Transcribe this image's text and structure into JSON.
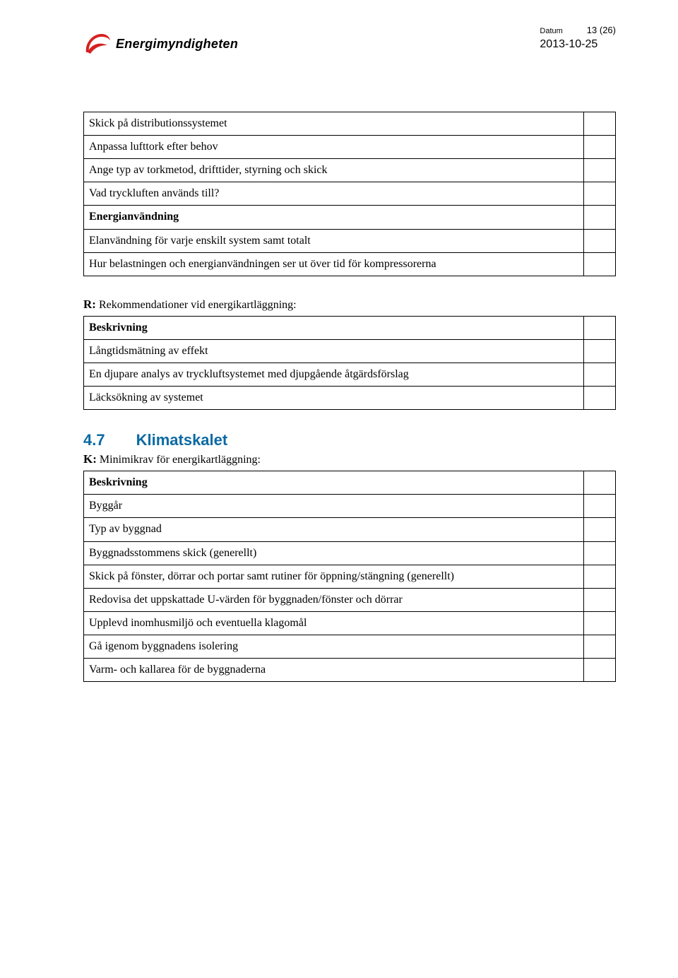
{
  "header": {
    "logo_text": "Energimyndigheten",
    "date_label": "Datum",
    "date": "2013-10-25",
    "page_label": "13 (26)"
  },
  "colors": {
    "section_heading": "#0b6aa3",
    "swoosh_red": "#d62020",
    "text": "#000000",
    "border": "#000000",
    "background": "#ffffff"
  },
  "tables": {
    "t1": {
      "rows": [
        "Skick på distributionssystemet",
        "Anpassa lufttork efter behov",
        "Ange typ av torkmetod, drifttider, styrning och skick",
        "Vad tryckluften används till?",
        "Energianvändning",
        "Elanvändning för varje enskilt system samt totalt",
        "Hur belastningen och energianvändningen ser ut över tid för kompressorerna"
      ],
      "bold_rows": [
        4
      ]
    },
    "t2": {
      "lead_label": "R:",
      "lead_text": "Rekommendationer vid energikartläggning:",
      "rows": [
        "Beskrivning",
        "Långtidsmätning av effekt",
        "En djupare analys av tryckluftsystemet med djupgående åtgärdsförslag",
        "Läcksökning av systemet"
      ],
      "bold_rows": [
        0
      ]
    },
    "section": {
      "number": "4.7",
      "title": "Klimatskalet"
    },
    "t3": {
      "lead_label": "K:",
      "lead_text": "Minimikrav för energikartläggning:",
      "rows": [
        "Beskrivning",
        "Byggår",
        "Typ av byggnad",
        "Byggnadsstommens skick (generellt)",
        "Skick på fönster, dörrar och portar samt rutiner för öppning/stängning (generellt)",
        "Redovisa det uppskattade U-värden för byggnaden/fönster och dörrar",
        "Upplevd inomhusmiljö och eventuella klagomål",
        "Gå igenom byggnadens isolering",
        "Varm- och kallarea för de byggnaderna"
      ],
      "bold_rows": [
        0
      ]
    }
  }
}
